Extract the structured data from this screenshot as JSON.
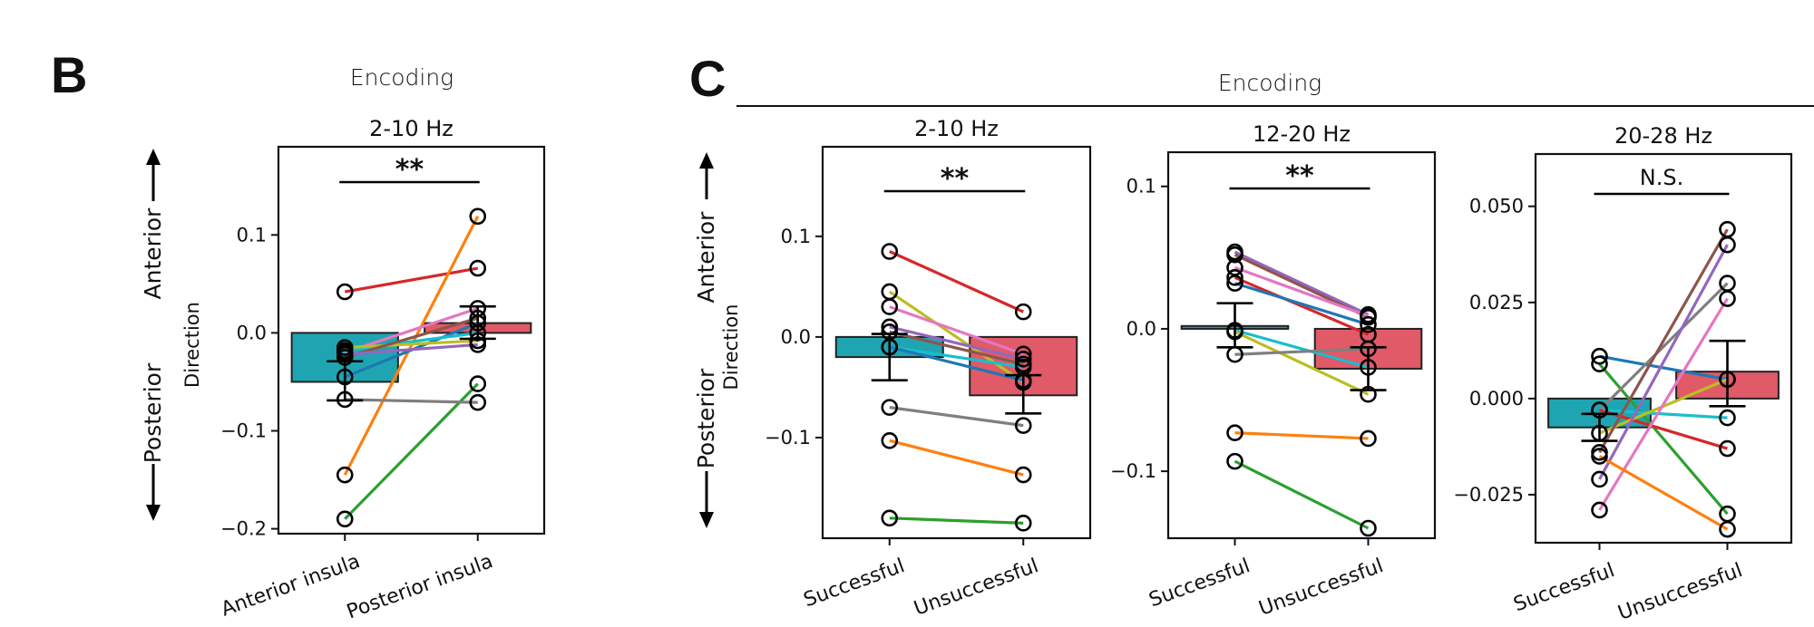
{
  "figure": {
    "panel_b_letter": "B",
    "panel_c_letter": "C",
    "panel_b_header": "Encoding",
    "panel_c_header": "Encoding",
    "direction_up": "Anterior",
    "direction_down": "Posterior"
  },
  "chart_data": [
    {
      "type": "bar",
      "title": "2-10 Hz",
      "ylabel": "Direction",
      "categories": [
        "Anterior insula",
        "Posterior insula"
      ],
      "ylim": [
        -0.205,
        0.19
      ],
      "yticks": [
        0.1,
        0.0,
        -0.1,
        -0.2
      ],
      "ytick_labels": [
        "0.1",
        "0.0",
        "−0.1",
        "−0.2"
      ],
      "significance": "**",
      "bar_colors": [
        "#1fa5b2",
        "#e05a68"
      ],
      "bars": [
        {
          "value": -0.05,
          "err_low": -0.069,
          "err_high": -0.029
        },
        {
          "value": 0.01,
          "err_low": -0.006,
          "err_high": 0.027
        }
      ],
      "series": [
        {
          "color": "#d62728",
          "values": [
            0.042,
            0.066
          ]
        },
        {
          "color": "#ff7f0e",
          "values": [
            -0.145,
            0.119
          ]
        },
        {
          "color": "#2ca02c",
          "values": [
            -0.19,
            -0.052
          ]
        },
        {
          "color": "#7f7f7f",
          "values": [
            -0.068,
            -0.071
          ]
        },
        {
          "color": "#1f77b4",
          "values": [
            -0.045,
            0.01
          ]
        },
        {
          "color": "#e377c2",
          "values": [
            -0.02,
            0.025
          ]
        },
        {
          "color": "#17becf",
          "values": [
            -0.018,
            0.0
          ]
        },
        {
          "color": "#bcbd22",
          "values": [
            -0.015,
            -0.008
          ]
        },
        {
          "color": "#8c564b",
          "values": [
            -0.025,
            0.015
          ]
        },
        {
          "color": "#9467bd",
          "values": [
            -0.022,
            -0.012
          ]
        }
      ]
    },
    {
      "type": "bar",
      "title": "2-10 Hz",
      "ylabel": "Direction",
      "categories": [
        "Successful",
        "Unsuccessful"
      ],
      "ylim": [
        -0.2,
        0.189
      ],
      "yticks": [
        0.1,
        0.0,
        -0.1
      ],
      "ytick_labels": [
        "0.1",
        "0.0",
        "−0.1"
      ],
      "significance": "**",
      "bar_colors": [
        "#1fa5b2",
        "#e05a68"
      ],
      "bars": [
        {
          "value": -0.02,
          "err_low": -0.043,
          "err_high": 0.003
        },
        {
          "value": -0.058,
          "err_low": -0.076,
          "err_high": -0.038
        }
      ],
      "series": [
        {
          "color": "#d62728",
          "values": [
            0.085,
            0.025
          ]
        },
        {
          "color": "#bcbd22",
          "values": [
            0.045,
            -0.045
          ]
        },
        {
          "color": "#e377c2",
          "values": [
            0.03,
            -0.017
          ]
        },
        {
          "color": "#9467bd",
          "values": [
            0.01,
            -0.022
          ]
        },
        {
          "color": "#8c564b",
          "values": [
            0.005,
            -0.027
          ]
        },
        {
          "color": "#17becf",
          "values": [
            -0.01,
            -0.03
          ]
        },
        {
          "color": "#1f77b4",
          "values": [
            -0.01,
            -0.043
          ]
        },
        {
          "color": "#7f7f7f",
          "values": [
            -0.07,
            -0.088
          ]
        },
        {
          "color": "#ff7f0e",
          "values": [
            -0.103,
            -0.137
          ]
        },
        {
          "color": "#2ca02c",
          "values": [
            -0.18,
            -0.185
          ]
        }
      ]
    },
    {
      "type": "bar",
      "title": "12-20 Hz",
      "categories": [
        "Successful",
        "Unsuccessful"
      ],
      "ylim": [
        -0.147,
        0.124
      ],
      "yticks": [
        0.1,
        0.0,
        -0.1
      ],
      "ytick_labels": [
        "0.1",
        "0.0",
        "−0.1"
      ],
      "significance": "**",
      "bar_colors": [
        "#1fa5b2",
        "#e05a68"
      ],
      "bars": [
        {
          "value": 0.002,
          "err_low": -0.013,
          "err_high": 0.018
        },
        {
          "value": -0.028,
          "err_low": -0.043,
          "err_high": -0.013
        }
      ],
      "series": [
        {
          "color": "#9467bd",
          "values": [
            0.054,
            0.01
          ]
        },
        {
          "color": "#8c564b",
          "values": [
            0.052,
            0.008
          ]
        },
        {
          "color": "#e377c2",
          "values": [
            0.043,
            0.009
          ]
        },
        {
          "color": "#d62728",
          "values": [
            0.036,
            -0.004
          ]
        },
        {
          "color": "#1f77b4",
          "values": [
            0.032,
            0.003
          ]
        },
        {
          "color": "#17becf",
          "values": [
            -0.001,
            -0.027
          ]
        },
        {
          "color": "#bcbd22",
          "values": [
            -0.002,
            -0.046
          ]
        },
        {
          "color": "#7f7f7f",
          "values": [
            -0.018,
            -0.014
          ]
        },
        {
          "color": "#ff7f0e",
          "values": [
            -0.073,
            -0.077
          ]
        },
        {
          "color": "#2ca02c",
          "values": [
            -0.093,
            -0.14
          ]
        }
      ]
    },
    {
      "type": "bar",
      "title": "20-28 Hz",
      "categories": [
        "Successful",
        "Unsuccessful"
      ],
      "ylim": [
        -0.0375,
        0.0636
      ],
      "yticks": [
        0.05,
        0.025,
        0.0,
        -0.025
      ],
      "ytick_labels": [
        "0.050",
        "0.025",
        "0.000",
        "−0.025"
      ],
      "significance": "N.S.",
      "bar_colors": [
        "#1fa5b2",
        "#e05a68"
      ],
      "bars": [
        {
          "value": -0.0075,
          "err_low": -0.011,
          "err_high": -0.004
        },
        {
          "value": 0.007,
          "err_low": -0.002,
          "err_high": 0.015
        }
      ],
      "series": [
        {
          "color": "#1f77b4",
          "values": [
            0.011,
            0.005
          ]
        },
        {
          "color": "#2ca02c",
          "values": [
            0.009,
            -0.03
          ]
        },
        {
          "color": "#7f7f7f",
          "values": [
            -0.003,
            0.03
          ]
        },
        {
          "color": "#17becf",
          "values": [
            -0.003,
            -0.005
          ]
        },
        {
          "color": "#d62728",
          "values": [
            -0.003,
            -0.013
          ]
        },
        {
          "color": "#bcbd22",
          "values": [
            -0.009,
            0.005
          ]
        },
        {
          "color": "#8c564b",
          "values": [
            -0.014,
            0.044
          ]
        },
        {
          "color": "#9467bd",
          "values": [
            -0.021,
            0.04
          ]
        },
        {
          "color": "#e377c2",
          "values": [
            -0.029,
            0.026
          ]
        },
        {
          "color": "#ff7f0e",
          "values": [
            -0.015,
            -0.034
          ]
        }
      ]
    }
  ]
}
